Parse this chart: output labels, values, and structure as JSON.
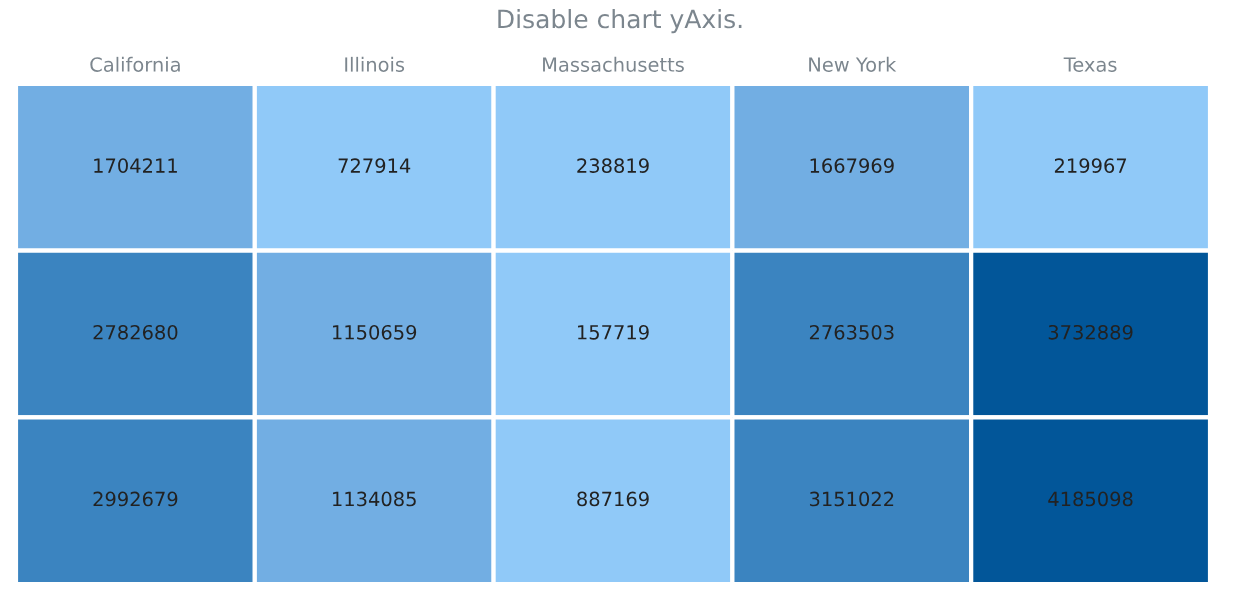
{
  "chart_data": {
    "type": "heatmap",
    "title": "Disable chart yAxis.",
    "categories": [
      "California",
      "Illinois",
      "Massachusetts",
      "New York",
      "Texas"
    ],
    "y_categories": [
      null,
      null,
      null
    ],
    "cells": [
      [
        1704211,
        727914,
        238819,
        1667969,
        219967
      ],
      [
        2782680,
        1150659,
        157719,
        2763503,
        3732889
      ],
      [
        2992679,
        1134085,
        887169,
        3151022,
        4185098
      ]
    ],
    "colors": [
      [
        "#72aee3",
        "#90c9f8",
        "#90c9f8",
        "#72aee3",
        "#90c9f8"
      ],
      [
        "#3b84c0",
        "#72aee3",
        "#90c9f8",
        "#3b84c0",
        "#025699"
      ],
      [
        "#3b84c0",
        "#72aee3",
        "#90c9f8",
        "#3b84c0",
        "#025699"
      ]
    ],
    "data_labels": true,
    "tick_labels": "x"
  }
}
